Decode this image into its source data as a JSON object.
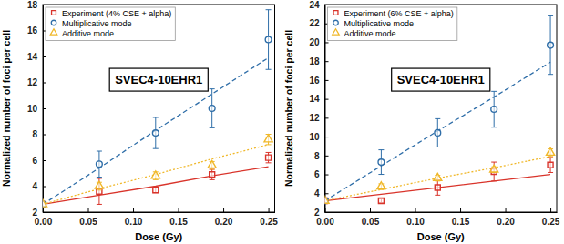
{
  "chart_data": [
    {
      "type": "scatter",
      "annotation": "SVEC4-10EHR1",
      "x_label": "Dose (Gy)",
      "y_label": "Normalized number of foci per cell",
      "x": [
        0,
        0.0625,
        0.125,
        0.1875,
        0.25
      ],
      "xlim": [
        0,
        0.257
      ],
      "xticks": [
        {
          "value": 0,
          "label": "0.00"
        },
        {
          "value": 0.05,
          "label": "0.05"
        },
        {
          "value": 0.1,
          "label": "0.10"
        },
        {
          "value": 0.15,
          "label": "0.15"
        },
        {
          "value": 0.2,
          "label": "0.20"
        },
        {
          "value": 0.25,
          "label": "0.25"
        }
      ],
      "ylim": [
        2,
        18
      ],
      "yticks": [
        2,
        4,
        6,
        8,
        10,
        12,
        14,
        16,
        18
      ],
      "legend": "upper left",
      "series": [
        {
          "name": "Experiment (4% CSE + alpha)",
          "color": "#d9342b",
          "marker": "square",
          "line_style": "solid",
          "values": [
            2.6,
            3.6,
            3.7,
            4.9,
            6.2
          ],
          "errors": [
            0.15,
            1.0,
            0.2,
            0.4,
            0.4
          ],
          "fit": [
            2.6,
            3.3,
            4.0,
            4.8,
            5.5
          ]
        },
        {
          "name": "Multiplicative mode",
          "color": "#2f6ea8",
          "marker": "circle",
          "line_style": "dashed",
          "values": [
            2.6,
            5.7,
            8.1,
            10.0,
            15.3
          ],
          "errors": [
            0,
            1.0,
            1.2,
            1.5,
            2.3
          ],
          "fit": [
            2.6,
            5.4,
            8.3,
            11.1,
            13.9
          ]
        },
        {
          "name": "Additive mode",
          "color": "#f0b82a",
          "marker": "triangle",
          "line_style": "dotted",
          "values": [
            2.6,
            4.0,
            4.8,
            5.6,
            7.6
          ],
          "errors": [
            0,
            0.3,
            0.3,
            0.3,
            0.4
          ],
          "fit": [
            2.6,
            3.8,
            4.9,
            6.1,
            7.2
          ]
        }
      ]
    },
    {
      "type": "scatter",
      "annotation": "SVEC4-10EHR1",
      "x_label": "Dose (Gy)",
      "y_label": "Normalized number of foci per cell",
      "x": [
        0,
        0.0625,
        0.125,
        0.1875,
        0.25
      ],
      "xlim": [
        0,
        0.257
      ],
      "xticks": [
        {
          "value": 0,
          "label": "0.00"
        },
        {
          "value": 0.05,
          "label": "0.05"
        },
        {
          "value": 0.1,
          "label": "0.10"
        },
        {
          "value": 0.15,
          "label": "0.15"
        },
        {
          "value": 0.2,
          "label": "0.20"
        },
        {
          "value": 0.25,
          "label": "0.25"
        }
      ],
      "ylim": [
        2,
        24
      ],
      "yticks": [
        2,
        4,
        6,
        8,
        10,
        12,
        14,
        16,
        18,
        20,
        22,
        24
      ],
      "legend": "upper left",
      "series": [
        {
          "name": "Experiment (6% CSE + alpha)",
          "color": "#d9342b",
          "marker": "square",
          "line_style": "solid",
          "values": [
            3.2,
            3.2,
            4.6,
            6.3,
            7.0
          ],
          "errors": [
            0.2,
            0.2,
            0.8,
            1.0,
            0.8
          ],
          "fit": [
            3.2,
            3.9,
            4.6,
            5.3,
            6.0
          ]
        },
        {
          "name": "Multiplicative mode",
          "color": "#2f6ea8",
          "marker": "circle",
          "line_style": "dashed",
          "values": [
            3.2,
            7.3,
            10.4,
            12.9,
            19.7
          ],
          "errors": [
            0,
            1.3,
            1.5,
            1.9,
            3.1
          ],
          "fit": [
            3.2,
            6.9,
            10.6,
            14.2,
            17.9
          ]
        },
        {
          "name": "Additive mode",
          "color": "#f0b82a",
          "marker": "triangle",
          "line_style": "dotted",
          "values": [
            3.2,
            4.7,
            5.6,
            6.5,
            8.3
          ],
          "errors": [
            0,
            0.3,
            0.3,
            0.3,
            0.4
          ],
          "fit": [
            3.2,
            4.4,
            5.6,
            6.7,
            7.9
          ]
        }
      ]
    }
  ]
}
